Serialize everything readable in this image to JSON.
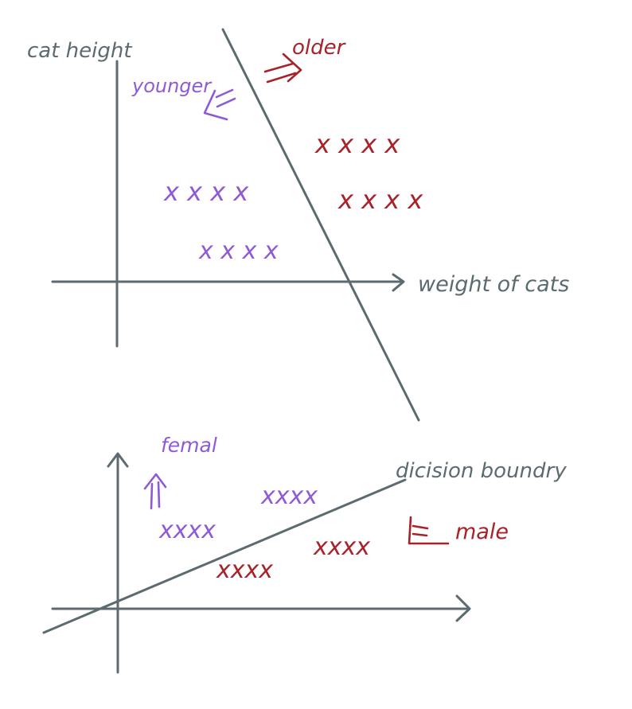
{
  "colors": {
    "axis": "#5b6b70",
    "purple": "#8e5ad6",
    "red": "#a8222a"
  },
  "top_plot": {
    "y_axis_label": "cat height",
    "x_axis_label": "weight of cats",
    "region_left_label": "younger",
    "region_right_label": "older",
    "left_cluster_rows": [
      "x x x x",
      "x x x x"
    ],
    "right_cluster_rows": [
      "x x x x",
      "x x x x"
    ]
  },
  "bottom_plot": {
    "boundary_label": "dicision boundry",
    "region_top_label": "femal",
    "region_bottom_label": "male",
    "top_cluster_rows": [
      "xxxx",
      "xxxx"
    ],
    "bottom_cluster_rows": [
      "xxxx",
      "xxxx"
    ]
  }
}
